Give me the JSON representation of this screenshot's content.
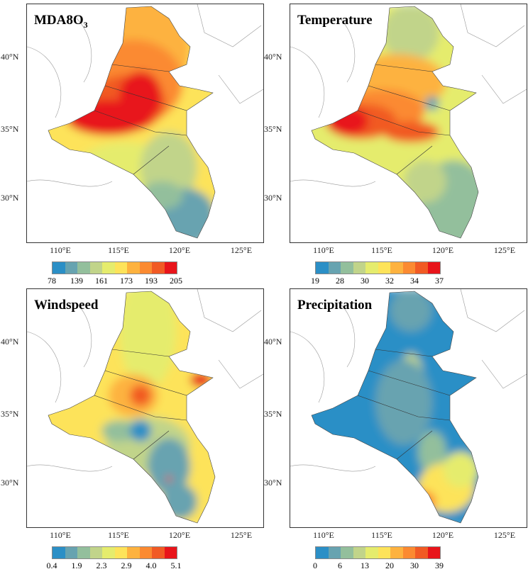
{
  "lat_labels": [
    "40°N",
    "35°N",
    "30°N"
  ],
  "lon_labels": [
    "110°E",
    "115°E",
    "120°E",
    "125°E"
  ],
  "colors": [
    "#2b8fc6",
    "#67a3b0",
    "#93bf9c",
    "#c1d48a",
    "#e5ec6d",
    "#fde35a",
    "#fdb23f",
    "#fb8a31",
    "#f15a24",
    "#e8141a"
  ],
  "panels": [
    {
      "title": "MDA8O",
      "title_sub": "3",
      "ticks": [
        "78",
        "139",
        "161",
        "173",
        "193",
        "205"
      ]
    },
    {
      "title": "Temperature",
      "title_sub": "",
      "ticks": [
        "19",
        "28",
        "30",
        "32",
        "34",
        "37"
      ]
    },
    {
      "title": "Windspeed",
      "title_sub": "",
      "ticks": [
        "0.4",
        "1.9",
        "2.3",
        "2.9",
        "4.0",
        "5.1"
      ]
    },
    {
      "title": "Precipitation",
      "title_sub": "",
      "ticks": [
        "0",
        "6",
        "13",
        "20",
        "30",
        "39"
      ]
    }
  ]
}
